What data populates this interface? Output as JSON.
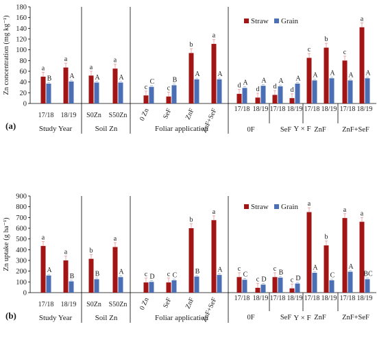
{
  "colors": {
    "straw": "#a31515",
    "grain": "#4a6fb5",
    "axis": "#000000"
  },
  "chart_data": [
    {
      "type": "bar",
      "panel_label": "(a)",
      "ylabel": "Zn concentration (mg kg⁻¹)",
      "ylim": [
        0,
        180
      ],
      "yticks": [
        0,
        20,
        40,
        60,
        80,
        100,
        120,
        140,
        160,
        180
      ],
      "legend": [
        "Straw",
        "Grain"
      ],
      "legend_position": "top-right",
      "groups": [
        {
          "label": "Study Year",
          "categories": [
            {
              "label": "17/18",
              "straw": 50,
              "grain": 37,
              "straw_letter": "a",
              "grain_letter": "B"
            },
            {
              "label": "18/19",
              "straw": 67,
              "grain": 41,
              "straw_letter": "a",
              "grain_letter": "A"
            }
          ]
        },
        {
          "label": "Soil Zn",
          "categories": [
            {
              "label": "S0Zn",
              "straw": 52,
              "grain": 39,
              "straw_letter": "a",
              "grain_letter": "A"
            },
            {
              "label": "S50Zn",
              "straw": 65,
              "grain": 39,
              "straw_letter": "a",
              "grain_letter": "A"
            }
          ]
        },
        {
          "label": "Foliar application",
          "categories": [
            {
              "label": "0 Zn",
              "straw": 15,
              "grain": 31,
              "straw_letter": "c",
              "grain_letter": "C"
            },
            {
              "label": "SeF",
              "straw": 13,
              "grain": 34,
              "straw_letter": "c",
              "grain_letter": "B"
            },
            {
              "label": "ZnF",
              "straw": 94,
              "grain": 45,
              "straw_letter": "b",
              "grain_letter": "A"
            },
            {
              "label": "ZnF+SeF",
              "straw": 111,
              "grain": 45,
              "straw_letter": "a",
              "grain_letter": "A"
            }
          ]
        },
        {
          "label": "Y × F",
          "subgroups": [
            "0F",
            "SeF",
            "ZnF",
            "ZnF+SeF"
          ],
          "categories": [
            {
              "label": "17/18",
              "straw": 18,
              "grain": 29,
              "straw_letter": "d",
              "grain_letter": "A"
            },
            {
              "label": "18/19",
              "straw": 11,
              "grain": 33,
              "straw_letter": "d",
              "grain_letter": "A"
            },
            {
              "label": "17/18",
              "straw": 16,
              "grain": 32,
              "straw_letter": "d",
              "grain_letter": "A"
            },
            {
              "label": "18/19",
              "straw": 10,
              "grain": 37,
              "straw_letter": "d",
              "grain_letter": "A"
            },
            {
              "label": "17/18",
              "straw": 85,
              "grain": 43,
              "straw_letter": "c",
              "grain_letter": "A"
            },
            {
              "label": "18/19",
              "straw": 104,
              "grain": 47,
              "straw_letter": "b",
              "grain_letter": "A"
            },
            {
              "label": "17/18",
              "straw": 80,
              "grain": 43,
              "straw_letter": "c",
              "grain_letter": "A"
            },
            {
              "label": "18/19",
              "straw": 142,
              "grain": 47,
              "straw_letter": "a",
              "grain_letter": "A"
            }
          ]
        }
      ]
    },
    {
      "type": "bar",
      "panel_label": "(b)",
      "ylabel": "Zn uptake (g ha⁻¹)",
      "ylim": [
        0,
        900
      ],
      "yticks": [
        0,
        100,
        200,
        300,
        400,
        500,
        600,
        700,
        800,
        900
      ],
      "legend": [
        "Straw",
        "Grain"
      ],
      "legend_position": "top-right",
      "groups": [
        {
          "label": "Study Year",
          "categories": [
            {
              "label": "17/18",
              "straw": 435,
              "grain": 160,
              "straw_letter": "a",
              "grain_letter": "A"
            },
            {
              "label": "18/19",
              "straw": 300,
              "grain": 105,
              "straw_letter": "a",
              "grain_letter": "B"
            }
          ]
        },
        {
          "label": "Soil Zn",
          "categories": [
            {
              "label": "S0Zn",
              "straw": 315,
              "grain": 125,
              "straw_letter": "b",
              "grain_letter": "B"
            },
            {
              "label": "S50Zn",
              "straw": 425,
              "grain": 145,
              "straw_letter": "a",
              "grain_letter": "A"
            }
          ]
        },
        {
          "label": "Foliar application",
          "categories": [
            {
              "label": "0 Zn",
              "straw": 95,
              "grain": 100,
              "straw_letter": "c",
              "grain_letter": "D"
            },
            {
              "label": "SeF",
              "straw": 95,
              "grain": 115,
              "straw_letter": "c",
              "grain_letter": "C"
            },
            {
              "label": "ZnF",
              "straw": 600,
              "grain": 150,
              "straw_letter": "b",
              "grain_letter": "B"
            },
            {
              "label": "ZnF+SeF",
              "straw": 675,
              "grain": 165,
              "straw_letter": "a",
              "grain_letter": "A"
            }
          ]
        },
        {
          "label": "Y × F",
          "subgroups": [
            "0F",
            "SeF",
            "ZnF",
            "ZnF+SeF"
          ],
          "categories": [
            {
              "label": "17/18",
              "straw": 145,
              "grain": 120,
              "straw_letter": "c",
              "grain_letter": "C"
            },
            {
              "label": "18/19",
              "straw": 45,
              "grain": 75,
              "straw_letter": "c",
              "grain_letter": "D"
            },
            {
              "label": "17/18",
              "straw": 145,
              "grain": 140,
              "straw_letter": "c",
              "grain_letter": "B"
            },
            {
              "label": "18/19",
              "straw": 40,
              "grain": 85,
              "straw_letter": "c",
              "grain_letter": "D"
            },
            {
              "label": "17/18",
              "straw": 750,
              "grain": 185,
              "straw_letter": "a",
              "grain_letter": "A"
            },
            {
              "label": "18/19",
              "straw": 440,
              "grain": 115,
              "straw_letter": "b",
              "grain_letter": "C"
            },
            {
              "label": "17/18",
              "straw": 695,
              "grain": 195,
              "straw_letter": "a",
              "grain_letter": "A"
            },
            {
              "label": "18/19",
              "straw": 660,
              "grain": 125,
              "straw_letter": "a",
              "grain_letter": "BC"
            }
          ]
        }
      ]
    }
  ]
}
